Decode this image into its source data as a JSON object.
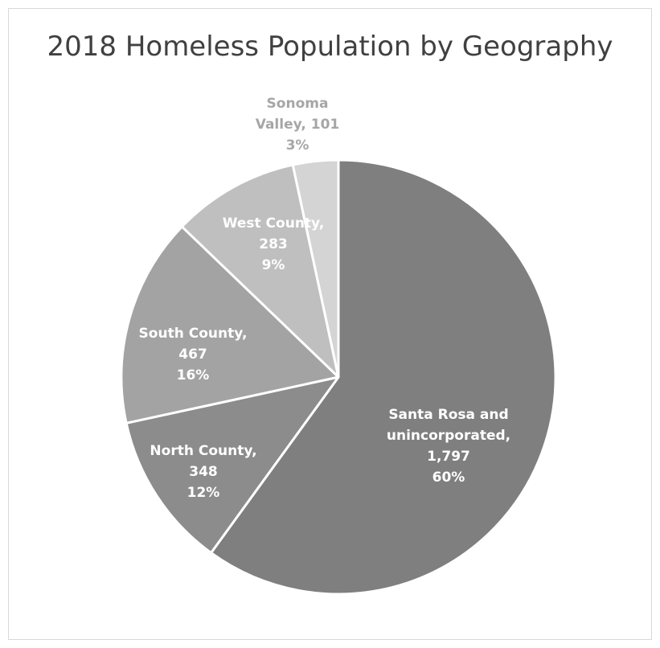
{
  "chart_data": {
    "type": "pie",
    "title": "2018 Homeless Population by Geography",
    "slices": [
      {
        "label": "Santa Rosa and unincorporated",
        "value": 1797,
        "value_text": "1,797",
        "percent": "60%",
        "color": "#7f7f7f"
      },
      {
        "label": "North County",
        "value": 348,
        "value_text": "348",
        "percent": "12%",
        "color": "#8c8c8c"
      },
      {
        "label": "South County",
        "value": 467,
        "value_text": "467",
        "percent": "16%",
        "color": "#a3a3a3"
      },
      {
        "label": "West County",
        "value": 283,
        "value_text": "283",
        "percent": "9%",
        "color": "#bfbfbf"
      },
      {
        "label": "Sonoma Valley",
        "value": 101,
        "value_text": "101",
        "percent": "3%",
        "color": "#d4d4d4"
      }
    ],
    "legend": "none"
  }
}
